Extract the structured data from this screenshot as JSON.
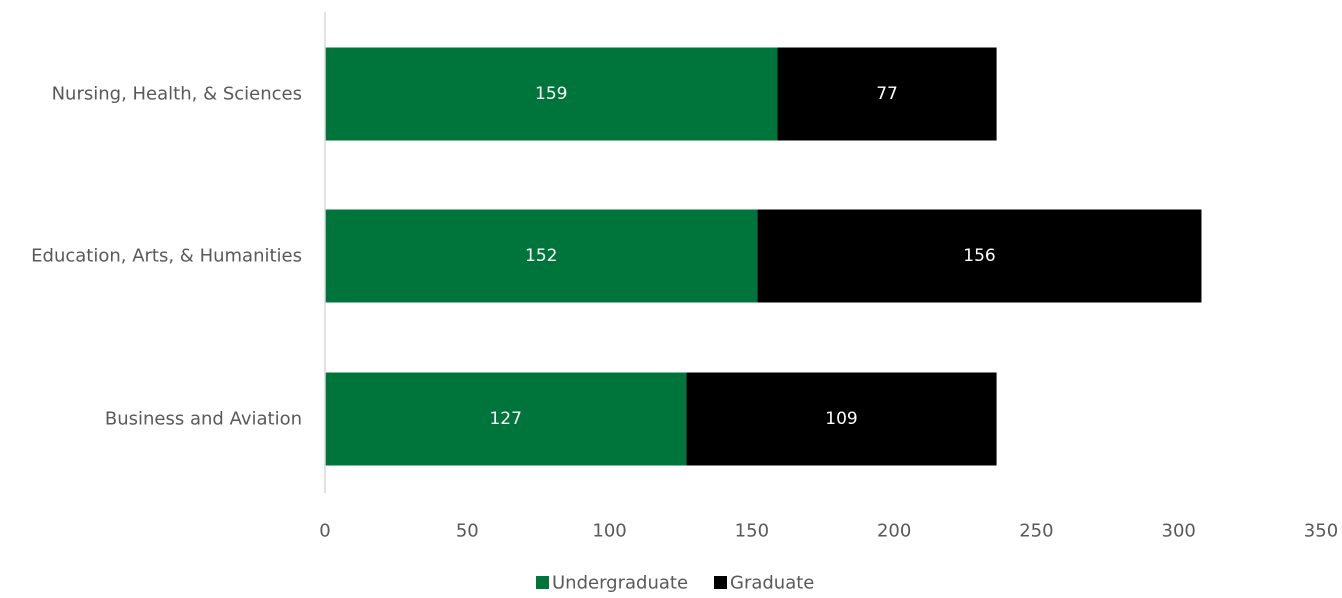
{
  "chart_data": {
    "type": "bar",
    "orientation": "horizontal",
    "stacked": true,
    "title": "",
    "xlabel": "",
    "ylabel": "",
    "categories": [
      "Nursing, Health, & Sciences",
      "Education, Arts, & Humanities",
      "Business and Aviation"
    ],
    "series": [
      {
        "name": "Undergraduate",
        "color": "#00753B",
        "values": [
          159,
          152,
          127
        ]
      },
      {
        "name": "Graduate",
        "color": "#000000",
        "values": [
          77,
          156,
          109
        ]
      }
    ],
    "xlim": [
      0,
      350
    ],
    "xticks": [
      "0",
      "50",
      "100",
      "150",
      "200",
      "250",
      "300",
      "350"
    ],
    "grid": false,
    "legend": "bottom",
    "data_labels": true,
    "data_label_color": "#ffffff",
    "axis_color": "#D9D9D9",
    "text_color": "#595959"
  }
}
